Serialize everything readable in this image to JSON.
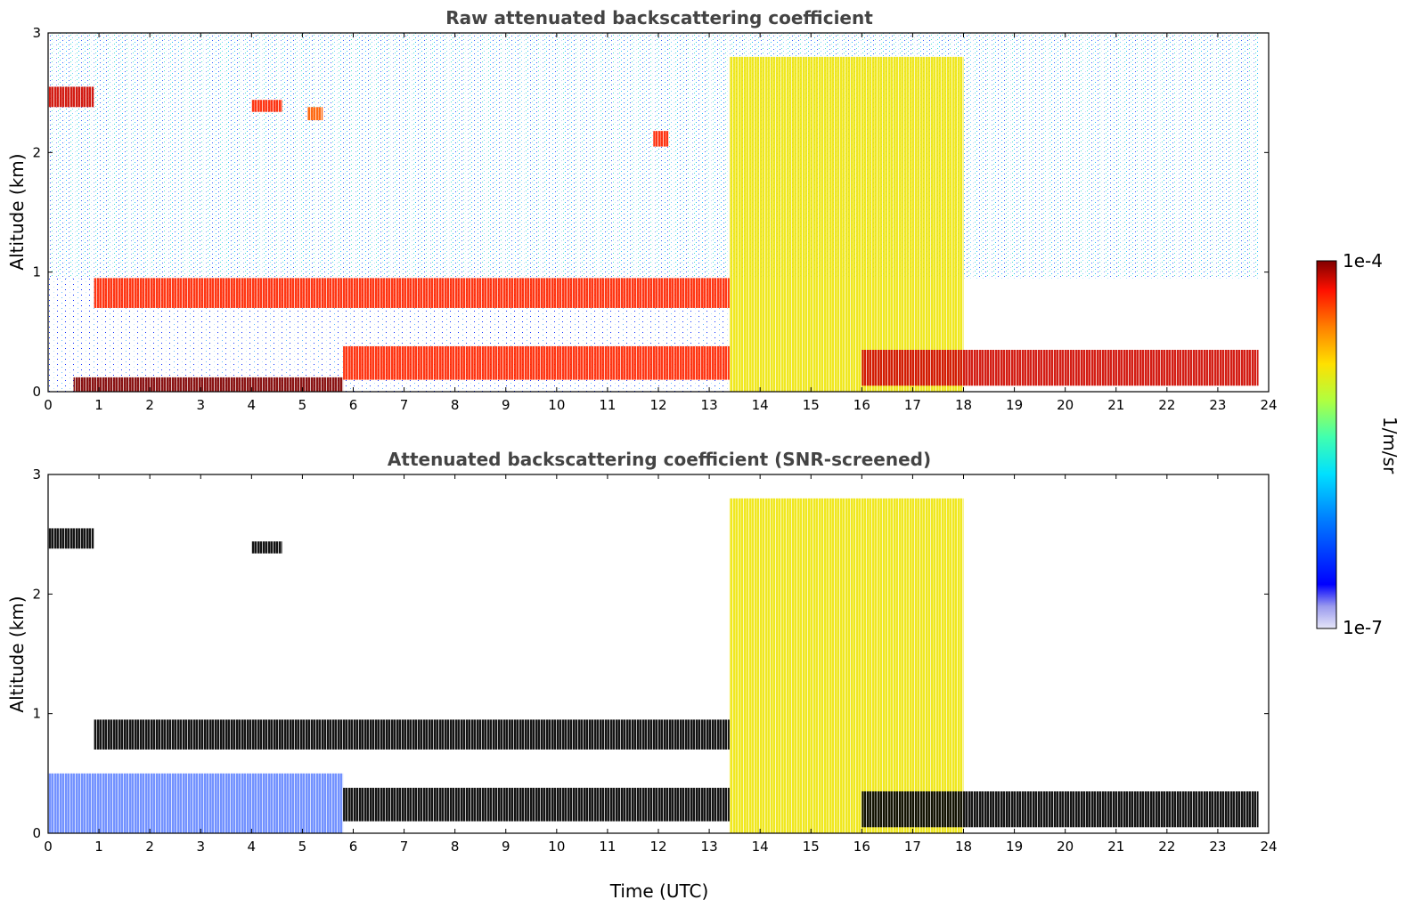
{
  "chart_data": [
    {
      "type": "heatmap",
      "title": "Raw attenuated backscattering coefficient",
      "xlabel": "",
      "ylabel": "Altitude (km)",
      "xlim": [
        0,
        24
      ],
      "ylim": [
        0,
        3
      ],
      "x_ticks": [
        "0",
        "1",
        "2",
        "3",
        "4",
        "5",
        "6",
        "7",
        "8",
        "9",
        "10",
        "11",
        "12",
        "13",
        "14",
        "15",
        "16",
        "17",
        "18",
        "19",
        "20",
        "21",
        "22",
        "23",
        "24"
      ],
      "y_ticks": [
        "0",
        "1",
        "2",
        "3"
      ],
      "features": [
        {
          "time": [
            0.0,
            0.9
          ],
          "altitude": [
            2.38,
            2.55
          ],
          "level": 0.95
        },
        {
          "time": [
            4.0,
            4.6
          ],
          "altitude": [
            2.34,
            2.44
          ],
          "level": 0.9
        },
        {
          "time": [
            5.1,
            5.4
          ],
          "altitude": [
            2.27,
            2.38
          ],
          "level": 0.85
        },
        {
          "time": [
            11.9,
            12.2
          ],
          "altitude": [
            2.05,
            2.18
          ],
          "level": 0.9
        },
        {
          "time": [
            0.9,
            13.4
          ],
          "altitude": [
            0.7,
            0.95
          ],
          "level": 0.9
        },
        {
          "time": [
            0.5,
            5.8
          ],
          "altitude": [
            0.0,
            0.12
          ],
          "level": 1.0
        },
        {
          "time": [
            5.8,
            13.4
          ],
          "altitude": [
            0.1,
            0.38
          ],
          "level": 0.9
        },
        {
          "time": [
            13.4,
            18.0
          ],
          "altitude": [
            0.0,
            2.8
          ],
          "level": 0.7
        },
        {
          "time": [
            16.0,
            23.8
          ],
          "altitude": [
            0.05,
            0.35
          ],
          "level": 0.95
        }
      ]
    },
    {
      "type": "heatmap",
      "title": "Attenuated backscattering coefficient (SNR-screened)",
      "xlabel": "Time (UTC)",
      "ylabel": "Altitude (km)",
      "xlim": [
        0,
        24
      ],
      "ylim": [
        0,
        3
      ],
      "x_ticks": [
        "0",
        "1",
        "2",
        "3",
        "4",
        "5",
        "6",
        "7",
        "8",
        "9",
        "10",
        "11",
        "12",
        "13",
        "14",
        "15",
        "16",
        "17",
        "18",
        "19",
        "20",
        "21",
        "22",
        "23",
        "24"
      ],
      "y_ticks": [
        "0",
        "1",
        "2",
        "3"
      ],
      "features": [
        {
          "time": [
            0.0,
            0.9
          ],
          "altitude": [
            2.38,
            2.55
          ],
          "level": 1.0
        },
        {
          "time": [
            4.0,
            4.6
          ],
          "altitude": [
            2.34,
            2.44
          ],
          "level": 1.0
        },
        {
          "time": [
            0.9,
            13.4
          ],
          "altitude": [
            0.7,
            0.95
          ],
          "level": 1.0
        },
        {
          "time": [
            0.0,
            5.8
          ],
          "altitude": [
            0.0,
            0.5
          ],
          "level": 0.2
        },
        {
          "time": [
            5.8,
            13.4
          ],
          "altitude": [
            0.1,
            0.38
          ],
          "level": 1.0
        },
        {
          "time": [
            13.4,
            18.0
          ],
          "altitude": [
            0.0,
            2.8
          ],
          "level": 0.7
        },
        {
          "time": [
            16.0,
            23.8
          ],
          "altitude": [
            0.05,
            0.35
          ],
          "level": 1.0
        }
      ]
    }
  ],
  "colorbar": {
    "label": "1/m/sr",
    "max_label": "1e-4",
    "min_label": "1e-7",
    "scale": "log",
    "colormap": "jet",
    "placement": "right"
  },
  "colors": {
    "title": "#444444",
    "axis": "#000000",
    "background": "#ffffff"
  }
}
